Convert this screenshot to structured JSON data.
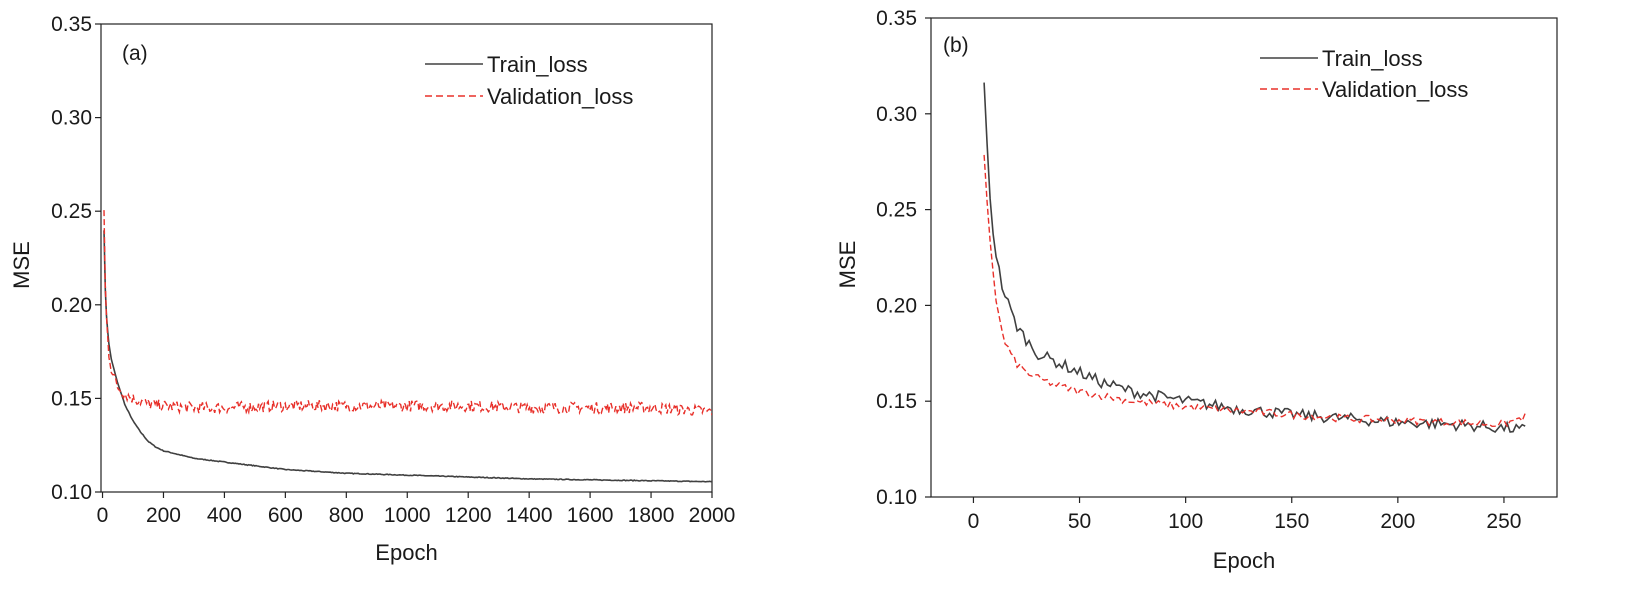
{
  "chart_data": [
    {
      "type": "line",
      "panel_label": "(a)",
      "xlabel": "Epoch",
      "ylabel": "MSE",
      "xlim": [
        -5,
        2000
      ],
      "ylim": [
        0.1,
        0.35
      ],
      "x_ticks": [
        0,
        200,
        400,
        600,
        800,
        1000,
        1200,
        1400,
        1600,
        1800,
        2000
      ],
      "y_ticks": [
        "0.10",
        "0.15",
        "0.20",
        "0.25",
        "0.30",
        "0.35"
      ],
      "legend": {
        "position": "top-right"
      },
      "series": [
        {
          "name": "Train_loss",
          "style": "solid",
          "color": "#404040",
          "x": [
            5,
            10,
            20,
            30,
            50,
            75,
            100,
            125,
            150,
            175,
            200,
            250,
            300,
            400,
            500,
            600,
            700,
            800,
            900,
            1000,
            1200,
            1400,
            1600,
            1800,
            2000
          ],
          "y": [
            0.24,
            0.2,
            0.18,
            0.17,
            0.158,
            0.146,
            0.138,
            0.132,
            0.127,
            0.124,
            0.122,
            0.12,
            0.118,
            0.116,
            0.114,
            0.112,
            0.111,
            0.11,
            0.1095,
            0.109,
            0.108,
            0.107,
            0.1065,
            0.106,
            0.1055
          ]
        },
        {
          "name": "Validation_loss",
          "style": "dashed",
          "color": "#e8302a",
          "x": [
            5,
            10,
            20,
            30,
            50,
            75,
            100,
            150,
            200,
            300,
            400,
            600,
            800,
            1000,
            1200,
            1400,
            1600,
            1800,
            2000
          ],
          "y": [
            0.25,
            0.2,
            0.175,
            0.165,
            0.156,
            0.152,
            0.15,
            0.147,
            0.146,
            0.145,
            0.145,
            0.146,
            0.146,
            0.146,
            0.146,
            0.145,
            0.145,
            0.145,
            0.143
          ],
          "noise": 0.003
        }
      ]
    },
    {
      "type": "line",
      "panel_label": "(b)",
      "xlabel": "Epoch",
      "ylabel": "MSE",
      "xlim": [
        -20,
        275
      ],
      "ylim": [
        0.1,
        0.35
      ],
      "x_ticks": [
        0,
        50,
        100,
        150,
        200,
        250
      ],
      "y_ticks": [
        "0.10",
        "0.15",
        "0.20",
        "0.25",
        "0.30",
        "0.35"
      ],
      "legend": {
        "position": "top-right"
      },
      "series": [
        {
          "name": "Train_loss",
          "style": "solid",
          "color": "#404040",
          "x": [
            5,
            7,
            9,
            11,
            13,
            15,
            20,
            25,
            30,
            40,
            50,
            60,
            75,
            100,
            125,
            150,
            175,
            200,
            225,
            250,
            260
          ],
          "y": [
            0.314,
            0.27,
            0.24,
            0.225,
            0.212,
            0.205,
            0.19,
            0.182,
            0.175,
            0.17,
            0.165,
            0.16,
            0.155,
            0.15,
            0.146,
            0.143,
            0.141,
            0.139,
            0.138,
            0.136,
            0.135
          ],
          "noise": 0.003
        },
        {
          "name": "Validation_loss",
          "style": "dashed",
          "color": "#e8302a",
          "x": [
            5,
            7,
            9,
            11,
            13,
            15,
            20,
            25,
            30,
            40,
            50,
            60,
            75,
            100,
            125,
            150,
            175,
            200,
            225,
            250,
            260
          ],
          "y": [
            0.277,
            0.245,
            0.22,
            0.2,
            0.188,
            0.18,
            0.17,
            0.165,
            0.162,
            0.158,
            0.155,
            0.153,
            0.15,
            0.147,
            0.145,
            0.143,
            0.141,
            0.14,
            0.139,
            0.138,
            0.142
          ],
          "noise": 0.002
        }
      ]
    }
  ]
}
